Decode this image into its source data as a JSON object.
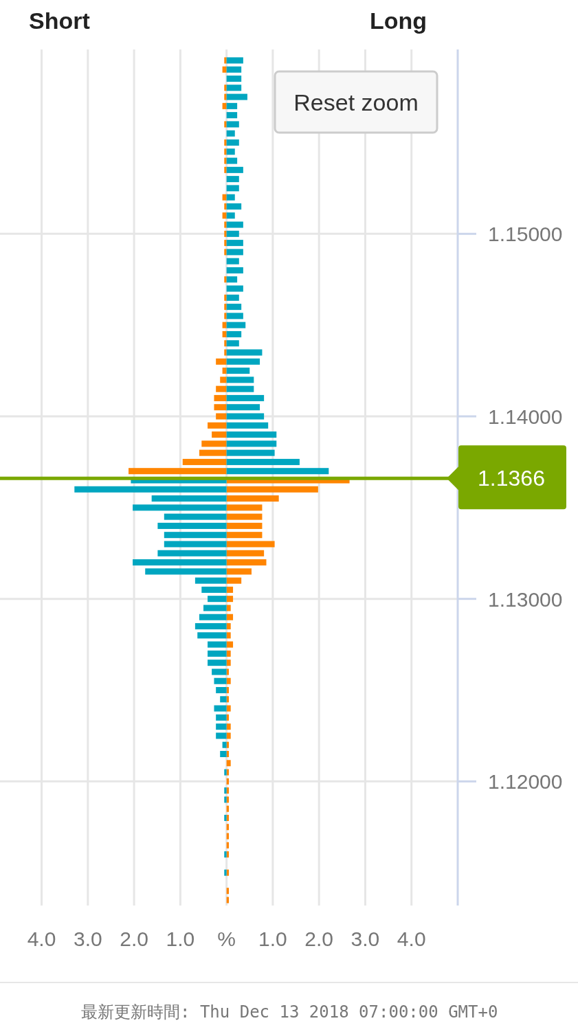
{
  "chart_data": {
    "type": "bar",
    "orientation": "horizontal",
    "stacked": true,
    "x": [
      1.1595,
      1.159,
      1.1585,
      1.158,
      1.1575,
      1.157,
      1.1565,
      1.156,
      1.1555,
      1.155,
      1.1545,
      1.154,
      1.1535,
      1.153,
      1.1525,
      1.152,
      1.1515,
      1.151,
      1.1505,
      1.15,
      1.1495,
      1.149,
      1.1485,
      1.148,
      1.1475,
      1.147,
      1.1465,
      1.146,
      1.1455,
      1.145,
      1.1445,
      1.144,
      1.1435,
      1.143,
      1.1425,
      1.142,
      1.1415,
      1.141,
      1.1405,
      1.14,
      1.1395,
      1.139,
      1.1385,
      1.138,
      1.1375,
      1.137,
      1.1365,
      1.136,
      1.1355,
      1.135,
      1.1345,
      1.134,
      1.1335,
      1.133,
      1.1325,
      1.132,
      1.1315,
      1.131,
      1.1305,
      1.13,
      1.1295,
      1.129,
      1.1285,
      1.128,
      1.1275,
      1.127,
      1.1265,
      1.126,
      1.1255,
      1.125,
      1.1245,
      1.124,
      1.1235,
      1.123,
      1.1225,
      1.122,
      1.1215,
      1.121,
      1.1205,
      1.12,
      1.1195,
      1.119,
      1.1185,
      1.118,
      1.1175,
      1.117,
      1.1165,
      1.116,
      1.115,
      1.114,
      1.1135
    ],
    "series": [
      {
        "color": "#ff8500",
        "values": [
          -0.05,
          -0.09,
          null,
          -0.05,
          -0.05,
          -0.09,
          null,
          -0.05,
          null,
          -0.05,
          -0.05,
          -0.05,
          -0.05,
          null,
          null,
          -0.09,
          -0.05,
          -0.09,
          -0.05,
          -0.05,
          -0.05,
          -0.05,
          null,
          null,
          -0.05,
          null,
          -0.05,
          -0.05,
          -0.05,
          -0.09,
          -0.09,
          -0.05,
          -0.05,
          -0.23,
          -0.09,
          -0.14,
          -0.23,
          -0.27,
          -0.27,
          -0.23,
          -0.41,
          -0.32,
          -0.54,
          -0.59,
          -0.95,
          -2.12,
          2.66,
          1.98,
          1.13,
          0.77,
          0.77,
          0.77,
          0.77,
          1.04,
          0.81,
          0.86,
          0.54,
          0.32,
          0.14,
          0.14,
          0.09,
          0.14,
          0.09,
          0.09,
          0.14,
          0.09,
          0.09,
          0.05,
          0.09,
          0.05,
          0.05,
          0.09,
          0.05,
          0.09,
          0.09,
          0.05,
          0.05,
          0.09,
          0.05,
          0.05,
          0.05,
          0.05,
          0.05,
          0.05,
          0.05,
          0.05,
          0.05,
          0.05,
          0.05,
          0.05,
          0.05
        ]
      },
      {
        "color": "#00a6c0",
        "values": [
          0.36,
          0.32,
          0.32,
          0.32,
          0.45,
          0.23,
          0.23,
          0.27,
          0.18,
          0.27,
          0.18,
          0.23,
          0.36,
          0.27,
          0.27,
          0.18,
          0.32,
          0.18,
          0.36,
          0.27,
          0.36,
          0.36,
          0.27,
          0.36,
          0.23,
          0.36,
          0.27,
          0.32,
          0.36,
          0.41,
          0.32,
          0.27,
          0.77,
          0.72,
          0.5,
          0.59,
          0.59,
          0.81,
          0.72,
          0.81,
          0.9,
          1.08,
          1.08,
          1.04,
          1.58,
          2.21,
          -2.07,
          -3.29,
          -1.62,
          -2.03,
          -1.35,
          -1.49,
          -1.35,
          -1.35,
          -1.49,
          -2.03,
          -1.76,
          -0.68,
          -0.54,
          -0.41,
          -0.5,
          -0.59,
          -0.68,
          -0.63,
          -0.41,
          -0.41,
          -0.41,
          -0.32,
          -0.27,
          -0.23,
          -0.14,
          -0.27,
          -0.23,
          -0.23,
          -0.23,
          -0.09,
          -0.14,
          null,
          -0.05,
          null,
          -0.05,
          -0.05,
          null,
          -0.05,
          null,
          null,
          null,
          -0.05,
          -0.05,
          null,
          null
        ]
      }
    ],
    "xlim": [
      -4.9,
      5.0
    ],
    "xticks": [
      {
        "value": -4,
        "label": "4.0"
      },
      {
        "value": -3,
        "label": "3.0"
      },
      {
        "value": -2,
        "label": "2.0"
      },
      {
        "value": -1,
        "label": "1.0"
      },
      {
        "value": 0,
        "label": "%"
      },
      {
        "value": 1,
        "label": "1.0"
      },
      {
        "value": 2,
        "label": "2.0"
      },
      {
        "value": 3,
        "label": "3.0"
      },
      {
        "value": 4,
        "label": "4.0"
      }
    ],
    "ylim": [
      1.1132,
      1.1601
    ],
    "yticks": [
      {
        "value": 1.12,
        "label": "1.12000"
      },
      {
        "value": 1.13,
        "label": "1.13000"
      },
      {
        "value": 1.14,
        "label": "1.14000"
      },
      {
        "value": 1.15,
        "label": "1.15000"
      }
    ],
    "grid": true,
    "ref_lines": [
      {
        "axis": "y",
        "value": 1.1366,
        "label": "1.1366",
        "color": "#7aa800"
      }
    ],
    "annotations": [
      "Short",
      "Long",
      "Reset zoom",
      "最新更新時間: Thu Dec 13 2018 07:00:00 GMT+0"
    ]
  }
}
